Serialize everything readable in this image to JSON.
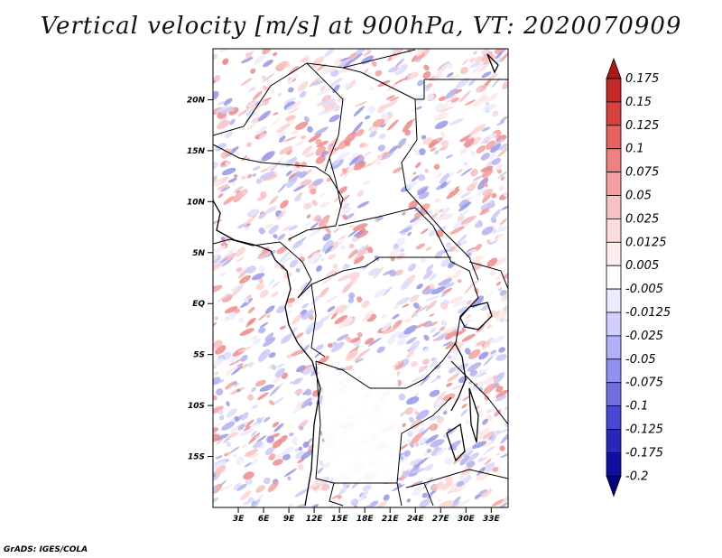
{
  "title": "Vertical velocity [m/s] at 900hPa, VT: 2020070909",
  "credit": "GrADS: IGES/COLA",
  "map": {
    "lon_range": [
      0,
      35
    ],
    "lat_range": [
      -20,
      25
    ],
    "lat_ticks": [
      {
        "value": 20,
        "label": "20N"
      },
      {
        "value": 15,
        "label": "15N"
      },
      {
        "value": 10,
        "label": "10N"
      },
      {
        "value": 5,
        "label": "5N"
      },
      {
        "value": 0,
        "label": "EQ"
      },
      {
        "value": -5,
        "label": "5S"
      },
      {
        "value": -10,
        "label": "10S"
      },
      {
        "value": -15,
        "label": "15S"
      }
    ],
    "lon_ticks": [
      {
        "value": 3,
        "label": "3E"
      },
      {
        "value": 6,
        "label": "6E"
      },
      {
        "value": 9,
        "label": "9E"
      },
      {
        "value": 12,
        "label": "12E"
      },
      {
        "value": 15,
        "label": "15E"
      },
      {
        "value": 18,
        "label": "18E"
      },
      {
        "value": 21,
        "label": "21E"
      },
      {
        "value": 24,
        "label": "24E"
      },
      {
        "value": 27,
        "label": "27E"
      },
      {
        "value": 30,
        "label": "30E"
      },
      {
        "value": 33,
        "label": "33E"
      }
    ]
  },
  "colorbar": {
    "labels": [
      "0.175",
      "0.15",
      "0.125",
      "0.1",
      "0.075",
      "0.05",
      "0.025",
      "0.0125",
      "0.005",
      "-0.005",
      "-0.0125",
      "-0.025",
      "-0.05",
      "-0.075",
      "-0.1",
      "-0.125",
      "-0.175",
      "-0.2"
    ],
    "colors": [
      "#b01818",
      "#c42a2a",
      "#d84040",
      "#e86060",
      "#f08080",
      "#f4a0a0",
      "#f8c0c0",
      "#fbdcdc",
      "#fdeeee",
      "#ffffff",
      "#eaeaff",
      "#d0d0ff",
      "#b0b0f8",
      "#9090f0",
      "#7070e0",
      "#4848d0",
      "#2828b8",
      "#1010a0",
      "#000080"
    ]
  }
}
